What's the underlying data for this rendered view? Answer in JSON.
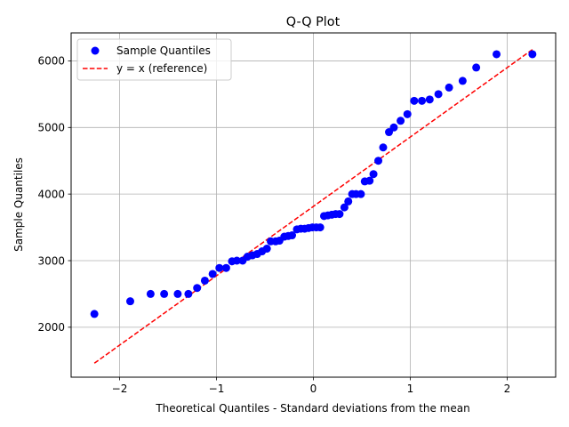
{
  "chart_data": {
    "type": "scatter",
    "title": "Q-Q Plot",
    "xlabel": "Theoretical Quantiles - Standard deviations from the mean",
    "ylabel": "Sample Quantiles",
    "xlim": [
      -2.5,
      2.5
    ],
    "ylim": [
      1250,
      6420
    ],
    "xticks": [
      -2,
      -1,
      0,
      1,
      2
    ],
    "yticks": [
      2000,
      3000,
      4000,
      5000,
      6000
    ],
    "grid": true,
    "legend_position": "top-left",
    "series": [
      {
        "name": "Sample Quantiles",
        "kind": "scatter",
        "color": "#0000ff",
        "points": [
          [
            -2.26,
            2200
          ],
          [
            -1.89,
            2390
          ],
          [
            -1.68,
            2500
          ],
          [
            -1.54,
            2500
          ],
          [
            -1.4,
            2500
          ],
          [
            -1.29,
            2500
          ],
          [
            -1.2,
            2590
          ],
          [
            -1.12,
            2700
          ],
          [
            -1.04,
            2800
          ],
          [
            -0.97,
            2890
          ],
          [
            -0.9,
            2890
          ],
          [
            -0.84,
            2990
          ],
          [
            -0.79,
            3000
          ],
          [
            -0.73,
            3000
          ],
          [
            -0.68,
            3060
          ],
          [
            -0.63,
            3080
          ],
          [
            -0.58,
            3100
          ],
          [
            -0.53,
            3140
          ],
          [
            -0.48,
            3180
          ],
          [
            -0.44,
            3290
          ],
          [
            -0.39,
            3290
          ],
          [
            -0.35,
            3300
          ],
          [
            -0.3,
            3360
          ],
          [
            -0.26,
            3370
          ],
          [
            -0.22,
            3380
          ],
          [
            -0.17,
            3470
          ],
          [
            -0.13,
            3480
          ],
          [
            -0.09,
            3480
          ],
          [
            -0.05,
            3490
          ],
          [
            -0.01,
            3500
          ],
          [
            0.03,
            3500
          ],
          [
            0.07,
            3500
          ],
          [
            0.11,
            3670
          ],
          [
            0.15,
            3680
          ],
          [
            0.19,
            3690
          ],
          [
            0.23,
            3700
          ],
          [
            0.27,
            3700
          ],
          [
            0.32,
            3800
          ],
          [
            0.36,
            3890
          ],
          [
            0.4,
            4000
          ],
          [
            0.44,
            4000
          ],
          [
            0.49,
            4000
          ],
          [
            0.53,
            4190
          ],
          [
            0.58,
            4200
          ],
          [
            0.62,
            4300
          ],
          [
            0.67,
            4500
          ],
          [
            0.72,
            4700
          ],
          [
            0.78,
            4930
          ],
          [
            0.83,
            5000
          ],
          [
            0.9,
            5100
          ],
          [
            0.97,
            5200
          ],
          [
            1.04,
            5400
          ],
          [
            1.12,
            5400
          ],
          [
            1.2,
            5420
          ],
          [
            1.29,
            5500
          ],
          [
            1.4,
            5600
          ],
          [
            1.54,
            5700
          ],
          [
            1.68,
            5900
          ],
          [
            1.89,
            6100
          ],
          [
            2.26,
            6100
          ]
        ]
      },
      {
        "name": "y = x (reference)",
        "kind": "line",
        "style": "dashed",
        "color": "#ff0000",
        "points": [
          [
            -2.26,
            1460
          ],
          [
            2.26,
            6170
          ]
        ]
      }
    ]
  }
}
